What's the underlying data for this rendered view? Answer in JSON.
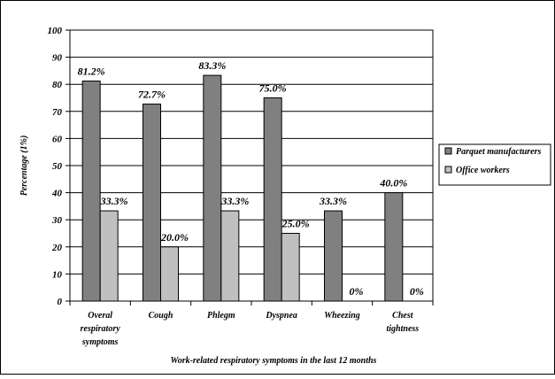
{
  "chart_data": {
    "type": "bar",
    "title": "",
    "xlabel": "Work-related respiratory symptoms in the last 12 months",
    "ylabel": "Percentage (1%)",
    "ylim": [
      0,
      100
    ],
    "yticks": [
      "0",
      "10",
      "20",
      "30",
      "40",
      "50",
      "60",
      "70",
      "80",
      "90",
      "100"
    ],
    "categories": [
      [
        "Overal",
        "respiratory",
        "symptoms"
      ],
      [
        "Cough"
      ],
      [
        "Phlegm"
      ],
      [
        "Dyspnea"
      ],
      [
        "Wheezing"
      ],
      [
        "Chest",
        "tightness"
      ]
    ],
    "series": [
      {
        "name": "Parquet manufacturers",
        "color": "#808080",
        "values": [
          81.2,
          72.7,
          83.3,
          75.0,
          33.3,
          40.0
        ],
        "labels": [
          "81.2%",
          "72.7%",
          "83.3%",
          "75.0%",
          "33.3%",
          "40.0%"
        ]
      },
      {
        "name": "Office workers",
        "color": "#c0c0c0",
        "values": [
          33.3,
          20.0,
          33.3,
          25.0,
          0,
          0
        ],
        "labels": [
          "33.3%",
          "20.0%",
          "33.3%",
          "25.0%",
          "0%",
          "0%"
        ]
      }
    ],
    "grid": true,
    "legend_position": "right"
  }
}
